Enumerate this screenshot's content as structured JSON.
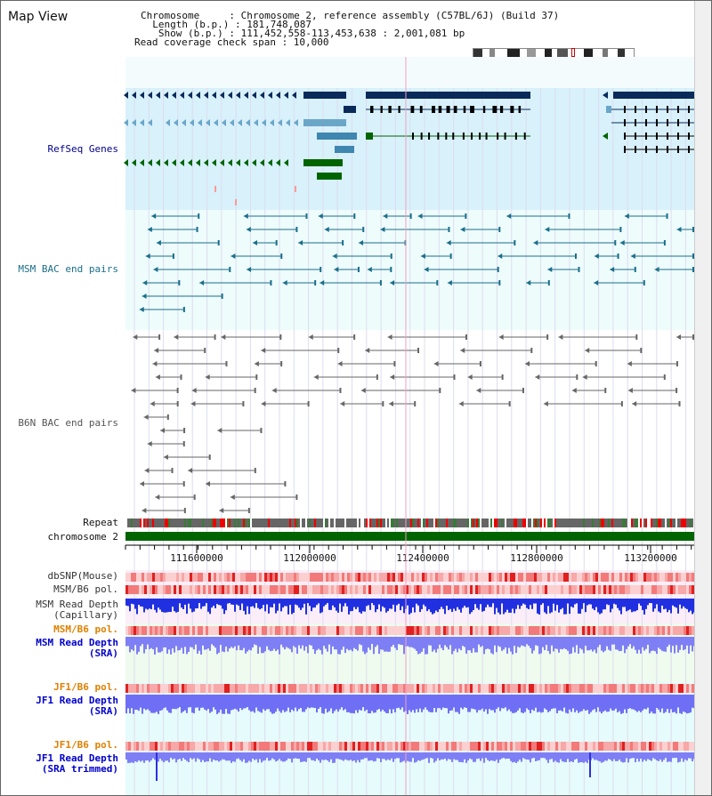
{
  "title": "Map View",
  "info": {
    "chromosome": "Chromosome     : Chromosome 2, reference assembly (C57BL/6J) (Build 37)",
    "length": "  Length (b.p.) : 181,748,087",
    "show": "   Show (b.p.) : 111,452,558-113,453,638 : 2,001,081 bp",
    "coverage": "Read coverage check span : 10,000"
  },
  "tracks": {
    "refseq": {
      "label": "RefSeq Genes",
      "color": "#00008b"
    },
    "msm_bac": {
      "label": "MSM BAC end pairs",
      "color": "#1a6e8a"
    },
    "b6n_bac": {
      "label": "B6N BAC end pairs",
      "color": "#555555"
    },
    "repeat": {
      "label": "Repeat"
    },
    "chromosome": {
      "label": "chromosome 2"
    },
    "dbsnp": {
      "label": "dbSNP(Mouse)"
    },
    "msm_b6_pol": {
      "label": "MSM/B6 pol."
    },
    "msm_depth_cap": {
      "label1": "MSM Read Depth",
      "label2": "(Capillary)"
    },
    "msm_b6_pol2": {
      "label": "MSM/B6 pol.",
      "color": "#e08000"
    },
    "msm_depth_sra": {
      "label1": "MSM Read Depth",
      "label2": "(SRA)",
      "color": "#0000cc"
    },
    "jf1_pol1": {
      "label": "JF1/B6 pol.",
      "color": "#e08000"
    },
    "jf1_depth_sra": {
      "label1": "JF1 Read Depth",
      "label2": "(SRA)",
      "color": "#0000cc"
    },
    "jf1_pol2": {
      "label": "JF1/B6 pol.",
      "color": "#e08000"
    },
    "jf1_depth_trim": {
      "label1": "JF1 Read Depth",
      "label2": "(SRA trimmed)",
      "color": "#0000cc"
    }
  },
  "axis": {
    "ticks": [
      "111600000",
      "112000000",
      "112400000",
      "112800000",
      "113200000"
    ]
  }
}
